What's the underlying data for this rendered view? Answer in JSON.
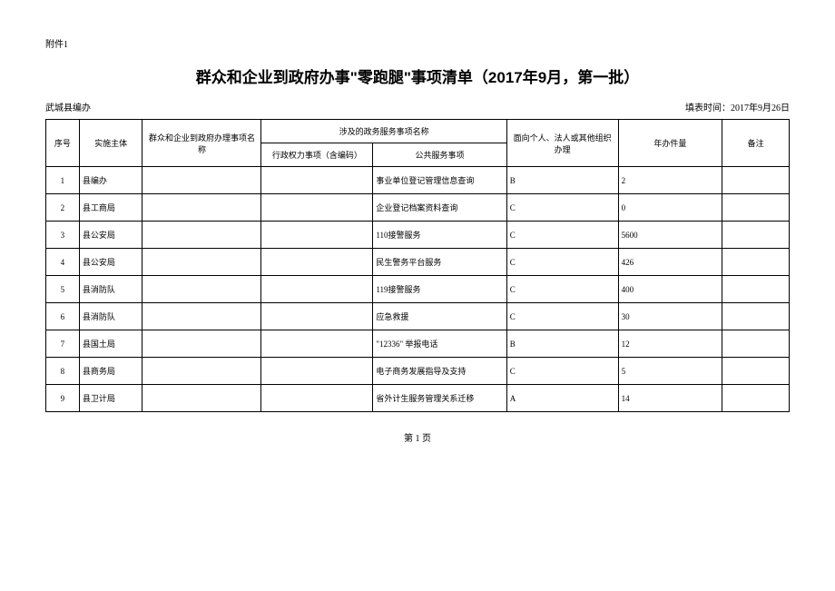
{
  "attachment_label": "附件1",
  "title": "群众和企业到政府办事\"零跑腿\"事项清单（2017年9月，第一批）",
  "org_label": "武城县编办",
  "fill_date_label": "填表时间：2017年9月26日",
  "headers": {
    "seq": "序号",
    "agency": "实施主体",
    "matter_name": "群众和企业到政府办理事项名称",
    "service_group": "涉及的政务服务事项名称",
    "admin_power": "行政权力事项（含编码）",
    "public_service": "公共服务事项",
    "target": "面向个人、法人或其他组织办理",
    "annual": "年办件量",
    "remark": "备注"
  },
  "rows": [
    {
      "seq": "1",
      "agency": "县编办",
      "matter": "",
      "admin": "",
      "public": "事业单位登记管理信息查询",
      "target": "B",
      "annual": "2",
      "remark": ""
    },
    {
      "seq": "2",
      "agency": "县工商局",
      "matter": "",
      "admin": "",
      "public": "企业登记档案资料查询",
      "target": "C",
      "annual": "0",
      "remark": ""
    },
    {
      "seq": "3",
      "agency": "县公安局",
      "matter": "",
      "admin": "",
      "public": "110接警服务",
      "target": "C",
      "annual": "5600",
      "remark": ""
    },
    {
      "seq": "4",
      "agency": "县公安局",
      "matter": "",
      "admin": "",
      "public": "民生警务平台服务",
      "target": "C",
      "annual": "426",
      "remark": ""
    },
    {
      "seq": "5",
      "agency": "县消防队",
      "matter": "",
      "admin": "",
      "public": "119接警服务",
      "target": "C",
      "annual": "400",
      "remark": ""
    },
    {
      "seq": "6",
      "agency": "县消防队",
      "matter": "",
      "admin": "",
      "public": "应急救援",
      "target": "C",
      "annual": "30",
      "remark": ""
    },
    {
      "seq": "7",
      "agency": "县国土局",
      "matter": "",
      "admin": "",
      "public": "\"12336\" 举报电话",
      "target": "B",
      "annual": "12",
      "remark": ""
    },
    {
      "seq": "8",
      "agency": "县商务局",
      "matter": "",
      "admin": "",
      "public": "电子商务发展指导及支持",
      "target": "C",
      "annual": "5",
      "remark": ""
    },
    {
      "seq": "9",
      "agency": "县卫计局",
      "matter": "",
      "admin": "",
      "public": "省外计生服务管理关系迁移",
      "target": "A",
      "annual": "14",
      "remark": ""
    }
  ],
  "page_number": "第 1 页"
}
